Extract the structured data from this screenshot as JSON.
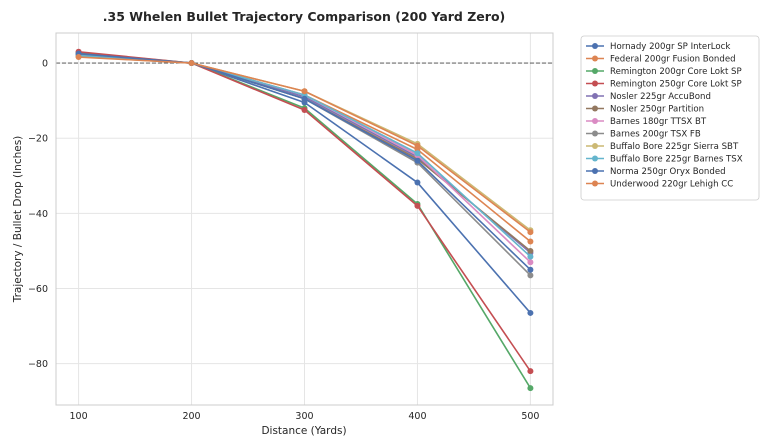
{
  "chart_data": {
    "type": "line",
    "title": ".35 Whelen Bullet Trajectory Comparison (200 Yard Zero)",
    "xlabel": "Distance (Yards)",
    "ylabel": "Trajectory / Bullet Drop (Inches)",
    "x": [
      100,
      200,
      300,
      400,
      500
    ],
    "xticks": [
      100,
      200,
      300,
      400,
      500
    ],
    "yticks": [
      0,
      -20,
      -40,
      -60,
      -80
    ],
    "xlim": [
      80,
      520
    ],
    "ylim": [
      -91,
      8
    ],
    "grid": true,
    "zero_line": true,
    "legend_position": "outside-right",
    "series": [
      {
        "name": "Hornady 200gr SP InterLock",
        "color": "#4c72b0",
        "values": [
          2.2,
          0,
          -10.5,
          -31.8,
          -66.5
        ]
      },
      {
        "name": "Federal 200gr Fusion Bonded",
        "color": "#dd8452",
        "values": [
          2.0,
          0,
          -8.5,
          -23.0,
          -47.5
        ]
      },
      {
        "name": "Remington 200gr Core Lokt SP",
        "color": "#55a868",
        "values": [
          2.8,
          0,
          -12.0,
          -37.5,
          -86.5
        ]
      },
      {
        "name": "Remington 250gr Core Lokt SP",
        "color": "#c44e52",
        "values": [
          3.0,
          0,
          -12.5,
          -38.0,
          -82.0
        ]
      },
      {
        "name": "Nosler 225gr AccuBond",
        "color": "#8172b3",
        "values": [
          2.2,
          0,
          -9.0,
          -25.0,
          -50.5
        ]
      },
      {
        "name": "Nosler 250gr Partition",
        "color": "#937860",
        "values": [
          2.4,
          0,
          -9.5,
          -25.5,
          -50.0
        ]
      },
      {
        "name": "Barnes 180gr TTSX BT",
        "color": "#da8bc3",
        "values": [
          1.8,
          0,
          -8.5,
          -24.5,
          -53.0
        ]
      },
      {
        "name": "Barnes 200gr TSX FB",
        "color": "#8c8c8c",
        "values": [
          2.2,
          0,
          -9.5,
          -26.5,
          -56.5
        ]
      },
      {
        "name": "Buffalo Bore 225gr Sierra SBT",
        "color": "#ccb974",
        "values": [
          1.7,
          0,
          -7.5,
          -21.5,
          -44.5
        ]
      },
      {
        "name": "Buffalo Bore 225gr Barnes TSX",
        "color": "#64b5cd",
        "values": [
          2.0,
          0,
          -8.5,
          -24.0,
          -51.5
        ]
      },
      {
        "name": "Norma 250gr Oryx Bonded",
        "color": "#4c72b0",
        "values": [
          2.5,
          0,
          -9.5,
          -26.0,
          -55.0
        ]
      },
      {
        "name": "Underwood 220gr Lehigh CC",
        "color": "#dd8452",
        "values": [
          1.6,
          0,
          -7.5,
          -22.0,
          -45.0
        ]
      }
    ]
  }
}
